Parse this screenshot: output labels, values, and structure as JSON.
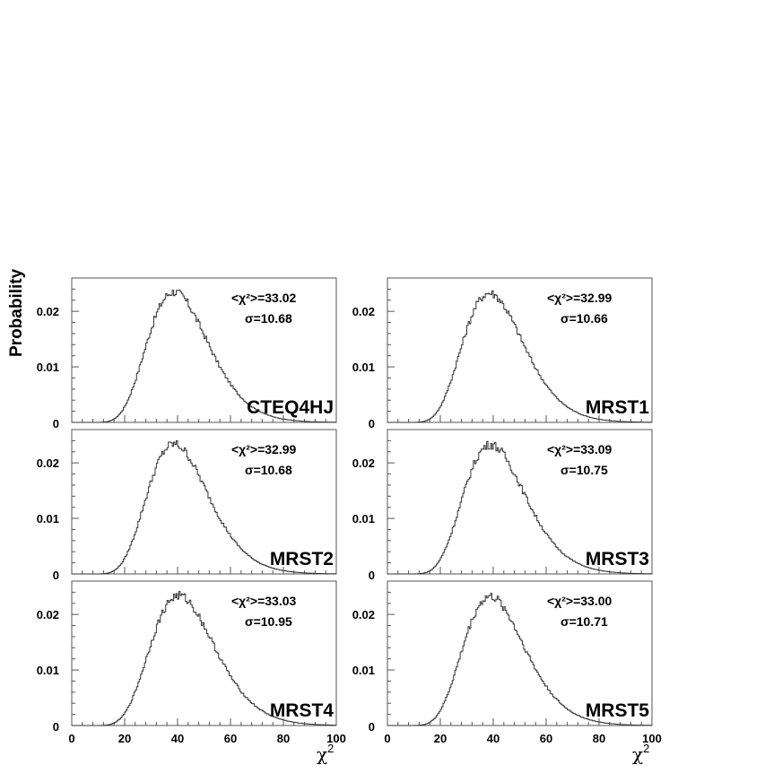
{
  "figure": {
    "ylabel": "Probability",
    "xlabel": "χ",
    "xlabel_sup": "2"
  },
  "chart_data": [
    {
      "type": "histogram",
      "panel": "top-left",
      "label": "CTEQ4HJ",
      "stat_mean": "<χ²>=33.02",
      "stat_sigma": "σ=10.68",
      "xlim": [
        0,
        100
      ],
      "ylim": [
        0,
        0.026
      ],
      "yticks": [
        "0",
        "0.01",
        "0.02"
      ],
      "xticks": [
        "0",
        "20",
        "40",
        "60",
        "80",
        "100"
      ],
      "mean": 33.02,
      "sigma": 10.68,
      "peak": 0.0235
    },
    {
      "type": "histogram",
      "panel": "top-right",
      "label": "MRST1",
      "stat_mean": "<χ²>=32.99",
      "stat_sigma": "σ=10.66",
      "xlim": [
        0,
        100
      ],
      "ylim": [
        0,
        0.026
      ],
      "yticks": [
        "0",
        "0.01",
        "0.02"
      ],
      "xticks": [
        "0",
        "20",
        "40",
        "60",
        "80",
        "100"
      ],
      "mean": 32.99,
      "sigma": 10.66,
      "peak": 0.0233
    },
    {
      "type": "histogram",
      "panel": "middle-left",
      "label": "MRST2",
      "stat_mean": "<χ²>=32.99",
      "stat_sigma": "σ=10.68",
      "xlim": [
        0,
        100
      ],
      "ylim": [
        0,
        0.026
      ],
      "yticks": [
        "0",
        "0.01",
        "0.02"
      ],
      "xticks": [
        "0",
        "20",
        "40",
        "60",
        "80",
        "100"
      ],
      "mean": 32.99,
      "sigma": 10.68,
      "peak": 0.0234
    },
    {
      "type": "histogram",
      "panel": "middle-right",
      "label": "MRST3",
      "stat_mean": "<χ²>=33.09",
      "stat_sigma": "σ=10.75",
      "xlim": [
        0,
        100
      ],
      "ylim": [
        0,
        0.026
      ],
      "yticks": [
        "0",
        "0.01",
        "0.02"
      ],
      "xticks": [
        "0",
        "20",
        "40",
        "60",
        "80",
        "100"
      ],
      "mean": 33.09,
      "sigma": 10.75,
      "peak": 0.0233
    },
    {
      "type": "histogram",
      "panel": "bottom-left",
      "label": "MRST4",
      "stat_mean": "<χ²>=33.03",
      "stat_sigma": "σ=10.95",
      "xlim": [
        0,
        100
      ],
      "ylim": [
        0,
        0.026
      ],
      "yticks": [
        "0",
        "0.01",
        "0.02"
      ],
      "xticks": [
        "0",
        "20",
        "40",
        "60",
        "80",
        "100"
      ],
      "mean": 33.03,
      "sigma": 10.95,
      "peak": 0.0234
    },
    {
      "type": "histogram",
      "panel": "bottom-right",
      "label": "MRST5",
      "stat_mean": "<χ²>=33.00",
      "stat_sigma": "σ=10.71",
      "xlim": [
        0,
        100
      ],
      "ylim": [
        0,
        0.026
      ],
      "yticks": [
        "0",
        "0.01",
        "0.02"
      ],
      "xticks": [
        "0",
        "20",
        "40",
        "60",
        "80",
        "100"
      ],
      "mean": 33.0,
      "sigma": 10.71,
      "peak": 0.0232
    }
  ]
}
